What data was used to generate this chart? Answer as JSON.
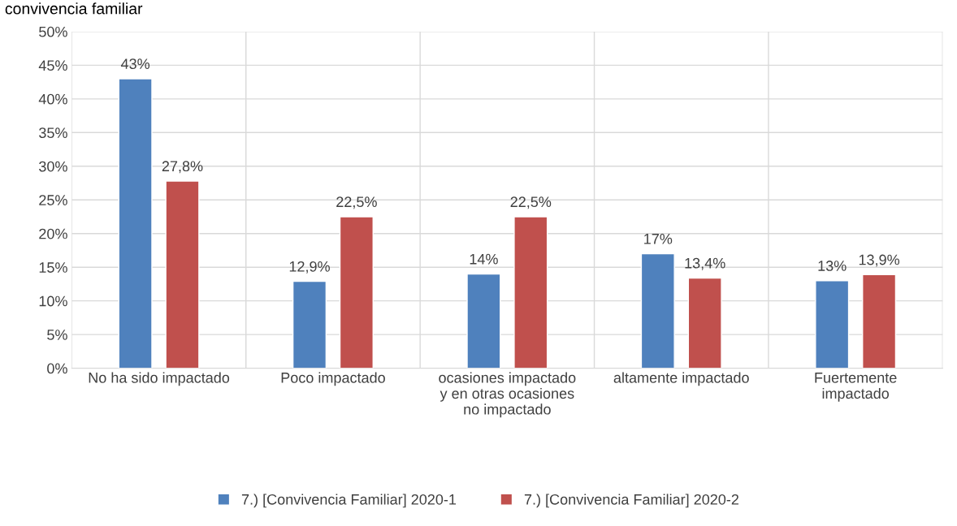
{
  "chart_data": {
    "type": "bar",
    "title": "convivencia familiar",
    "categories": [
      "No ha sido impactado",
      "Poco impactado",
      "ocasiones impactado\ny en otras ocasiones\nno impactado",
      "altamente impactado",
      "Fuertemente\nimpactado"
    ],
    "series": [
      {
        "name": "7.) [Convivencia Familiar] 2020-1",
        "color": "#4f81bd",
        "values": [
          43,
          12.9,
          14,
          17,
          13
        ],
        "value_labels": [
          "43%",
          "12,9%",
          "14%",
          "17%",
          "13%"
        ]
      },
      {
        "name": "7.) [Convivencia Familiar] 2020-2",
        "color": "#c0504d",
        "values": [
          27.8,
          22.5,
          22.5,
          13.4,
          13.9
        ],
        "value_labels": [
          "27,8%",
          "22,5%",
          "22,5%",
          "13,4%",
          "13,9%"
        ]
      }
    ],
    "ylim": [
      0,
      50
    ],
    "yticks": [
      {
        "value": 0,
        "label": "0%"
      },
      {
        "value": 5,
        "label": "5%"
      },
      {
        "value": 10,
        "label": "10%"
      },
      {
        "value": 15,
        "label": "15%"
      },
      {
        "value": 20,
        "label": "20%"
      },
      {
        "value": 25,
        "label": "25%"
      },
      {
        "value": 30,
        "label": "30%"
      },
      {
        "value": 35,
        "label": "35%"
      },
      {
        "value": 40,
        "label": "40%"
      },
      {
        "value": 45,
        "label": "45%"
      },
      {
        "value": 50,
        "label": "50%"
      }
    ],
    "grid": true,
    "legend": "bottom"
  }
}
